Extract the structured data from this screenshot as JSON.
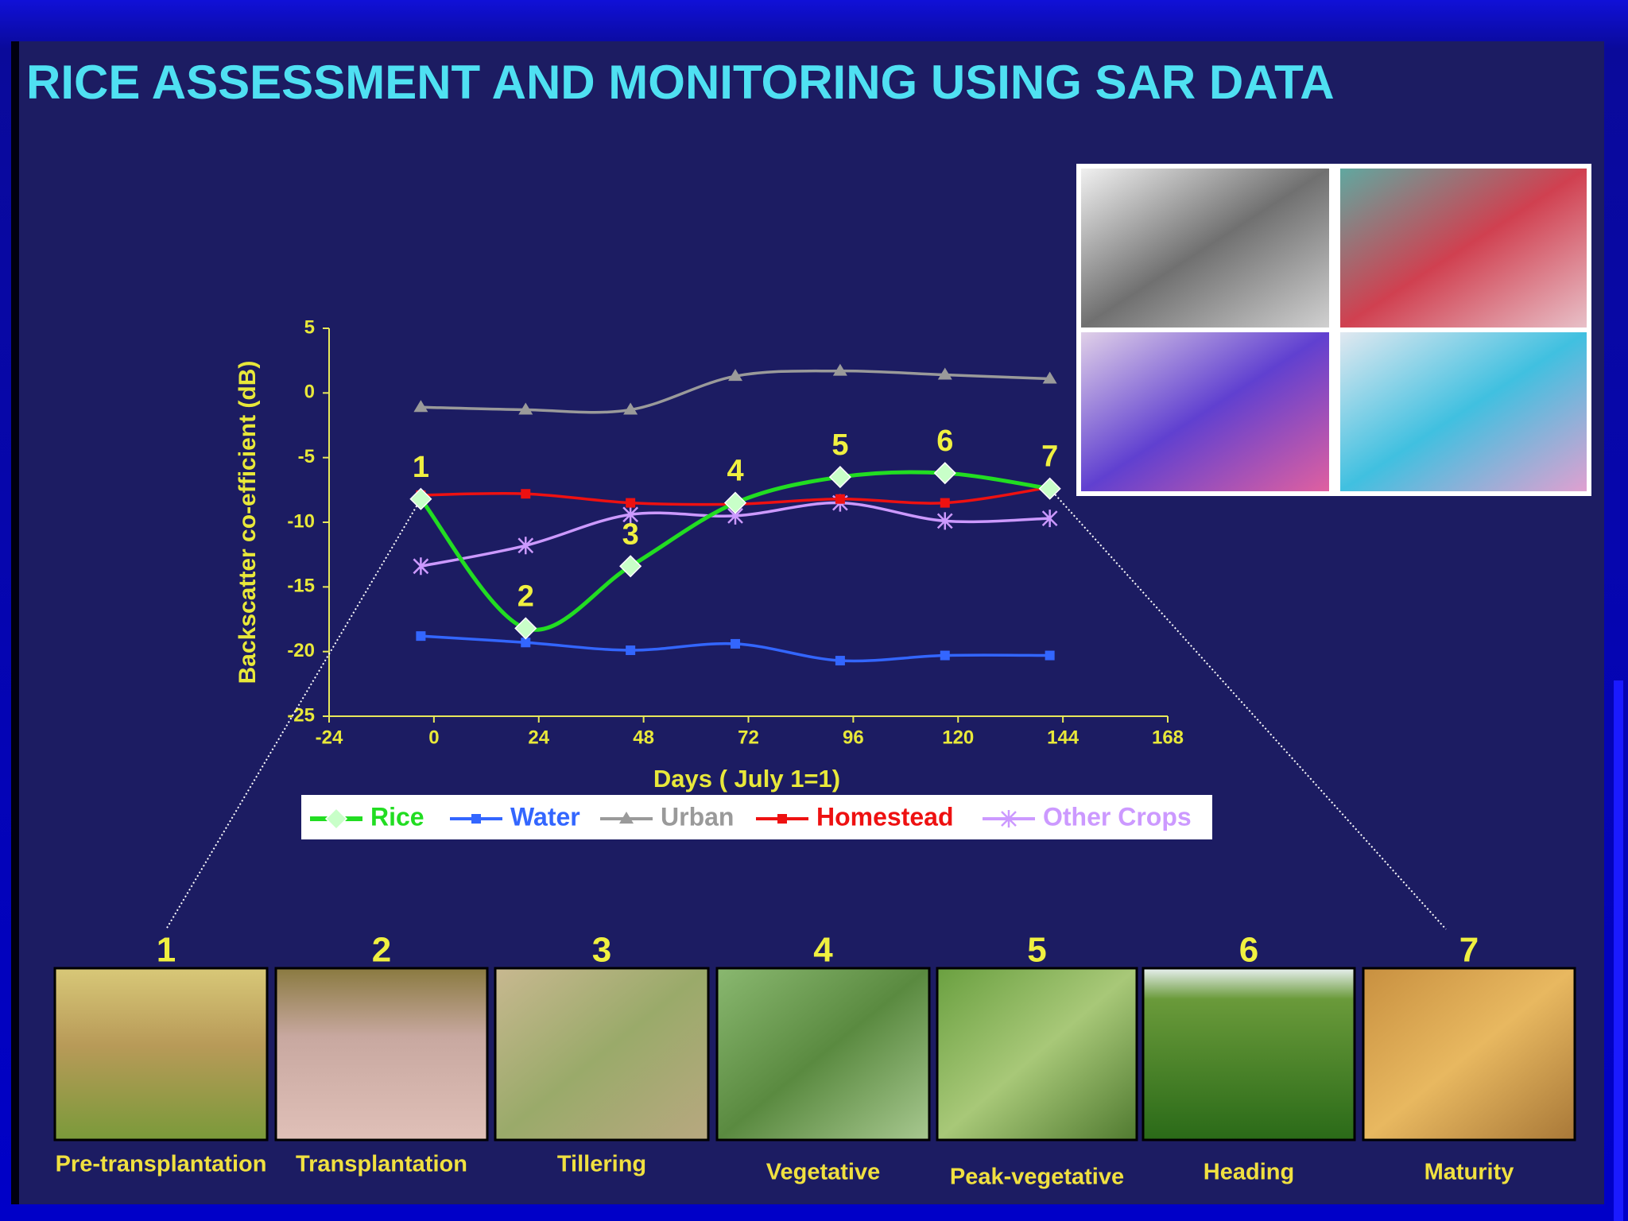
{
  "title": "RICE ASSESSMENT AND MONITORING USING SAR DATA",
  "chart_data": {
    "type": "line",
    "x": [
      -3,
      21,
      45,
      69,
      93,
      117,
      141
    ],
    "xlim": [
      -24,
      168
    ],
    "xticks": [
      -24,
      0,
      24,
      48,
      72,
      96,
      120,
      144,
      168
    ],
    "ylim": [
      -25,
      5
    ],
    "yticks": [
      -25,
      -20,
      -15,
      -10,
      -5,
      0,
      5
    ],
    "xlabel": "Days ( July 1=1)",
    "ylabel": "Backscatter co-efficient (dB)",
    "smooth": true,
    "legend": "bottom",
    "series": [
      {
        "name": "Rice",
        "color": "#22dd22",
        "marker": "diamond",
        "values": [
          -8.2,
          -18.2,
          -13.4,
          -8.5,
          -6.5,
          -6.2,
          -7.4
        ],
        "point_labels": [
          "1",
          "2",
          "3",
          "4",
          "5",
          "6",
          "7"
        ]
      },
      {
        "name": "Water",
        "color": "#3366ff",
        "marker": "square",
        "values": [
          -18.8,
          -19.3,
          -19.9,
          -19.4,
          -20.7,
          -20.3,
          -20.3
        ]
      },
      {
        "name": "Urban",
        "color": "#9a9a9a",
        "marker": "triangle",
        "values": [
          -1.1,
          -1.3,
          -1.3,
          1.3,
          1.7,
          1.4,
          1.1
        ]
      },
      {
        "name": "Homestead",
        "color": "#ee1111",
        "marker": "square",
        "values": [
          -7.9,
          -7.8,
          -8.5,
          -8.6,
          -8.2,
          -8.5,
          -7.3
        ]
      },
      {
        "name": "Other Crops",
        "color": "#cc99ff",
        "marker": "star",
        "values": [
          -13.4,
          -11.8,
          -9.4,
          -9.5,
          -8.5,
          -9.9,
          -9.7
        ]
      }
    ]
  },
  "stages": [
    {
      "number": "1",
      "label": "Pre-transplantation"
    },
    {
      "number": "2",
      "label": "Transplantation"
    },
    {
      "number": "3",
      "label": "Tillering"
    },
    {
      "number": "4",
      "label": "Vegetative"
    },
    {
      "number": "5",
      "label": "Peak-vegetative"
    },
    {
      "number": "6",
      "label": "Heading"
    },
    {
      "number": "7",
      "label": "Maturity"
    }
  ]
}
